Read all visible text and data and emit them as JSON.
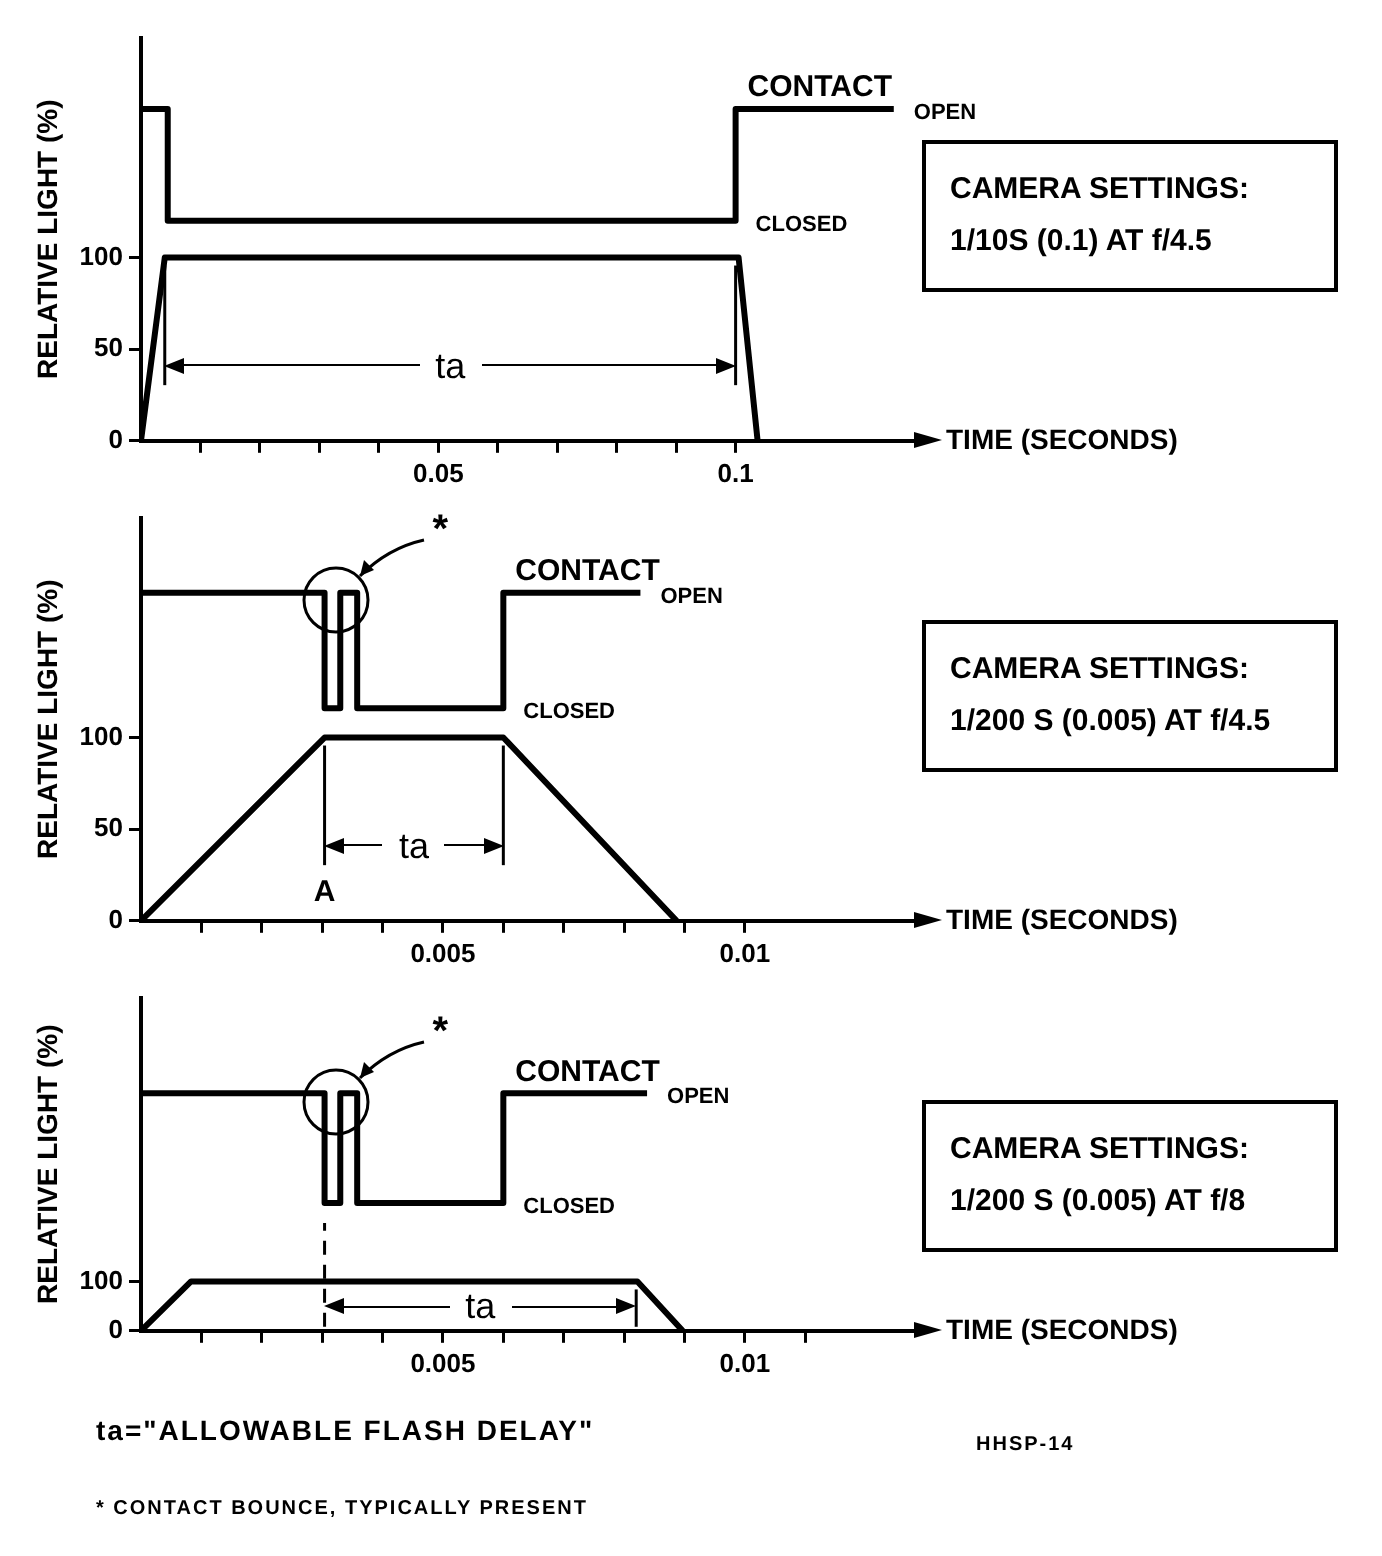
{
  "chart_data": [
    {
      "type": "line",
      "ylabel": "RELATIVE LIGHT (%)",
      "xlabel": "TIME (SECONDS)",
      "xlim": [
        0,
        0.13
      ],
      "ylim": [
        0,
        220
      ],
      "yticks": [
        0,
        50,
        100
      ],
      "xticks": [
        {
          "value": 0.01,
          "label": null
        },
        {
          "value": 0.02,
          "label": null
        },
        {
          "value": 0.03,
          "label": null
        },
        {
          "value": 0.04,
          "label": null
        },
        0.05,
        {
          "value": 0.06,
          "label": null
        },
        {
          "value": 0.07,
          "label": null
        },
        {
          "value": 0.08,
          "label": null
        },
        {
          "value": 0.09,
          "label": null
        },
        0.1
      ],
      "series": [
        {
          "color": "#000000",
          "x": [
            0,
            0.004,
            0.1005,
            0.1037
          ],
          "values": [
            0,
            100,
            100,
            0
          ]
        },
        {
          "name": "CONTACT",
          "color": "#000000",
          "x": [
            0,
            0.0045,
            0.0045,
            0.1,
            0.1,
            0.1266
          ],
          "values": [
            181,
            181,
            120,
            120,
            181,
            181
          ]
        }
      ],
      "ref_lines": [
        {
          "axis": "x",
          "value": 0.004
        },
        {
          "axis": "x",
          "value": 0.1
        }
      ],
      "annotations": [
        "CAMERA SETTINGS:",
        "1/10S (0.1) AT f/4.5",
        "ta",
        {
          "text": "OPEN",
          "x": 0.1266,
          "y": 181
        },
        {
          "text": "CLOSED",
          "x": 0.1,
          "y": 120
        }
      ]
    },
    {
      "type": "line",
      "ylabel": "RELATIVE LIGHT (%)",
      "xlabel": "TIME (SECONDS)",
      "xlim": [
        0,
        0.0128
      ],
      "ylim": [
        0,
        220
      ],
      "yticks": [
        0,
        50,
        100
      ],
      "xticks": [
        {
          "value": 0.001,
          "label": null
        },
        {
          "value": 0.002,
          "label": null
        },
        {
          "value": 0.003,
          "label": null
        },
        {
          "value": 0.004,
          "label": null
        },
        0.005,
        {
          "value": 0.006,
          "label": null
        },
        {
          "value": 0.007,
          "label": null
        },
        {
          "value": 0.008,
          "label": null
        },
        {
          "value": 0.009,
          "label": null
        },
        0.01
      ],
      "series": [
        {
          "color": "#000000",
          "x": [
            0,
            0.00304,
            0.006,
            0.00887
          ],
          "values": [
            0,
            100,
            100,
            0
          ]
        },
        {
          "name": "CONTACT",
          "color": "#000000",
          "x": [
            0,
            0.00304,
            0.00304,
            0.0033,
            0.0033,
            0.00358,
            0.00358,
            0.006,
            0.006,
            0.00827
          ],
          "values": [
            179,
            179,
            116,
            116,
            179,
            179,
            116,
            116,
            179,
            179
          ]
        }
      ],
      "ref_lines": [
        {
          "axis": "x",
          "value": 0.00304,
          "label": "A"
        },
        {
          "axis": "x",
          "value": 0.006
        }
      ],
      "annotations": [
        "CAMERA SETTINGS:",
        "1/200 S (0.005) AT f/4.5",
        "ta",
        "*",
        {
          "text": "OPEN",
          "x": 0.00827,
          "y": 179
        },
        {
          "text": "CLOSED",
          "x": 0.006,
          "y": 116
        }
      ]
    },
    {
      "type": "line",
      "ylabel": "RELATIVE LIGHT (%)",
      "xlabel": "TIME (SECONDS)",
      "xlim": [
        0,
        0.0128
      ],
      "ylim": [
        0,
        675
      ],
      "yticks": [
        0,
        100
      ],
      "xticks": [
        {
          "value": 0.001,
          "label": null
        },
        {
          "value": 0.002,
          "label": null
        },
        {
          "value": 0.003,
          "label": null
        },
        {
          "value": 0.004,
          "label": null
        },
        0.005,
        {
          "value": 0.006,
          "label": null
        },
        {
          "value": 0.007,
          "label": null
        },
        {
          "value": 0.008,
          "label": null
        },
        {
          "value": 0.009,
          "label": null
        },
        0.01,
        {
          "value": 0.011,
          "label": null
        }
      ],
      "series": [
        {
          "color": "#000000",
          "x": [
            0,
            0.00083,
            0.00822,
            0.00897
          ],
          "values": [
            0,
            100,
            100,
            0
          ]
        },
        {
          "name": "CONTACT",
          "color": "#000000",
          "x": [
            0,
            0.00304,
            0.00304,
            0.0033,
            0.0033,
            0.00358,
            0.00358,
            0.006,
            0.006,
            0.00838
          ],
          "values": [
            481,
            481,
            259,
            259,
            481,
            481,
            259,
            259,
            481,
            481
          ]
        }
      ],
      "ref_lines": [
        {
          "axis": "x",
          "value": 0.00304,
          "line_style": "dashed"
        },
        {
          "axis": "x",
          "value": 0.0082
        }
      ],
      "annotations": [
        "CAMERA SETTINGS:",
        "1/200 S (0.005) AT f/8",
        "ta",
        "*",
        {
          "text": "OPEN",
          "x": 0.00838,
          "y": 481
        },
        {
          "text": "CLOSED",
          "x": 0.006,
          "y": 259
        }
      ]
    },
    {
      "type": "other",
      "annotations": [
        "ta=\"ALLOWABLE FLASH DELAY\"",
        "HHSP-14",
        "* CONTACT BOUNCE, TYPICALLY PRESENT"
      ]
    }
  ]
}
